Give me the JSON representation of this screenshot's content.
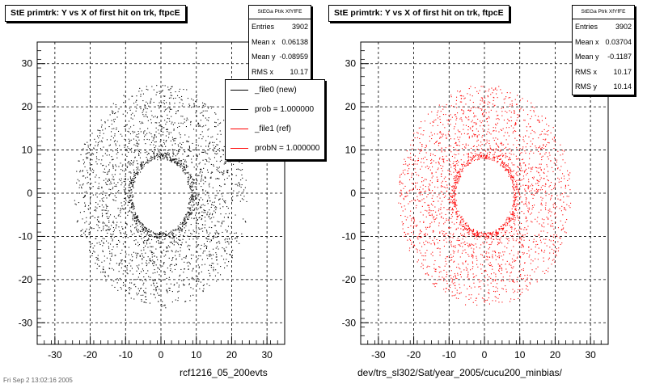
{
  "pads": [
    {
      "title": "StE primtrk: Y vs X of first hit on trk, ftpcE",
      "stats_header": "StEGa Ptrk XfYfFE",
      "stats": [
        {
          "label": "Entries",
          "value": "3902"
        },
        {
          "label": "Mean x",
          "value": "0.06138"
        },
        {
          "label": "Mean y",
          "value": "-0.08959"
        },
        {
          "label": "RMS x",
          "value": "10.17"
        }
      ],
      "xlabel": "rcf1216_05_200evts",
      "color": "#000000"
    },
    {
      "title": "StE primtrk: Y vs X of first hit on trk, ftpcE",
      "stats_header": "StEGa Ptrk XfYfFE",
      "stats": [
        {
          "label": "Entries",
          "value": "3902"
        },
        {
          "label": "Mean x",
          "value": "0.03704"
        },
        {
          "label": "Mean y",
          "value": "-0.1187"
        },
        {
          "label": "RMS x",
          "value": "10.17"
        },
        {
          "label": "RMS y",
          "value": "10.14"
        }
      ],
      "xlabel": "dev/trs_sl302/Sat/year_2005/cucu200_minbias/",
      "color": "#ff0000"
    }
  ],
  "legend": [
    {
      "label": "_file0 (new)",
      "color": "#000000"
    },
    {
      "label": "prob = 1.000000",
      "color": "#000000"
    },
    {
      "label": "_file1 (ref)",
      "color": "#ff0000"
    },
    {
      "label": "probN = 1.000000",
      "color": "#ff0000"
    }
  ],
  "footer": "Fri Sep 2 13:02:16 2005",
  "chart_data": [
    {
      "type": "scatter",
      "title": "StE primtrk: Y vs X of first hit on trk, ftpcE",
      "xlabel": "rcf1216_05_200evts",
      "ylabel": "",
      "xlim": [
        -35,
        35
      ],
      "ylim": [
        -35,
        35
      ],
      "x_ticks": [
        -30,
        -20,
        -10,
        0,
        10,
        20,
        30
      ],
      "y_ticks": [
        -30,
        -20,
        -10,
        0,
        10,
        20,
        30
      ],
      "grid": true,
      "series": [
        {
          "color": "#000000",
          "description": "Scatter of ~3900 hits forming an annular ring; inner radius ~8, outer radius ~24, center near (0,0)",
          "entries": 3902,
          "mean_x": 0.06138,
          "mean_y": -0.08959,
          "rms_x": 10.17
        }
      ]
    },
    {
      "type": "scatter",
      "title": "StE primtrk: Y vs X of first hit on trk, ftpcE",
      "xlabel": "dev/trs_sl302/Sat/year_2005/cucu200_minbias/",
      "ylabel": "",
      "xlim": [
        -35,
        35
      ],
      "ylim": [
        -35,
        35
      ],
      "x_ticks": [
        -30,
        -20,
        -10,
        0,
        10,
        20,
        30
      ],
      "y_ticks": [
        -30,
        -20,
        -10,
        0,
        10,
        20,
        30
      ],
      "grid": true,
      "series": [
        {
          "color": "#ff0000",
          "description": "Scatter of ~3900 hits forming an annular ring; inner radius ~8, outer radius ~24, center near (0,0)",
          "entries": 3902,
          "mean_x": 0.03704,
          "mean_y": -0.1187,
          "rms_x": 10.17,
          "rms_y": 10.14
        }
      ]
    }
  ]
}
